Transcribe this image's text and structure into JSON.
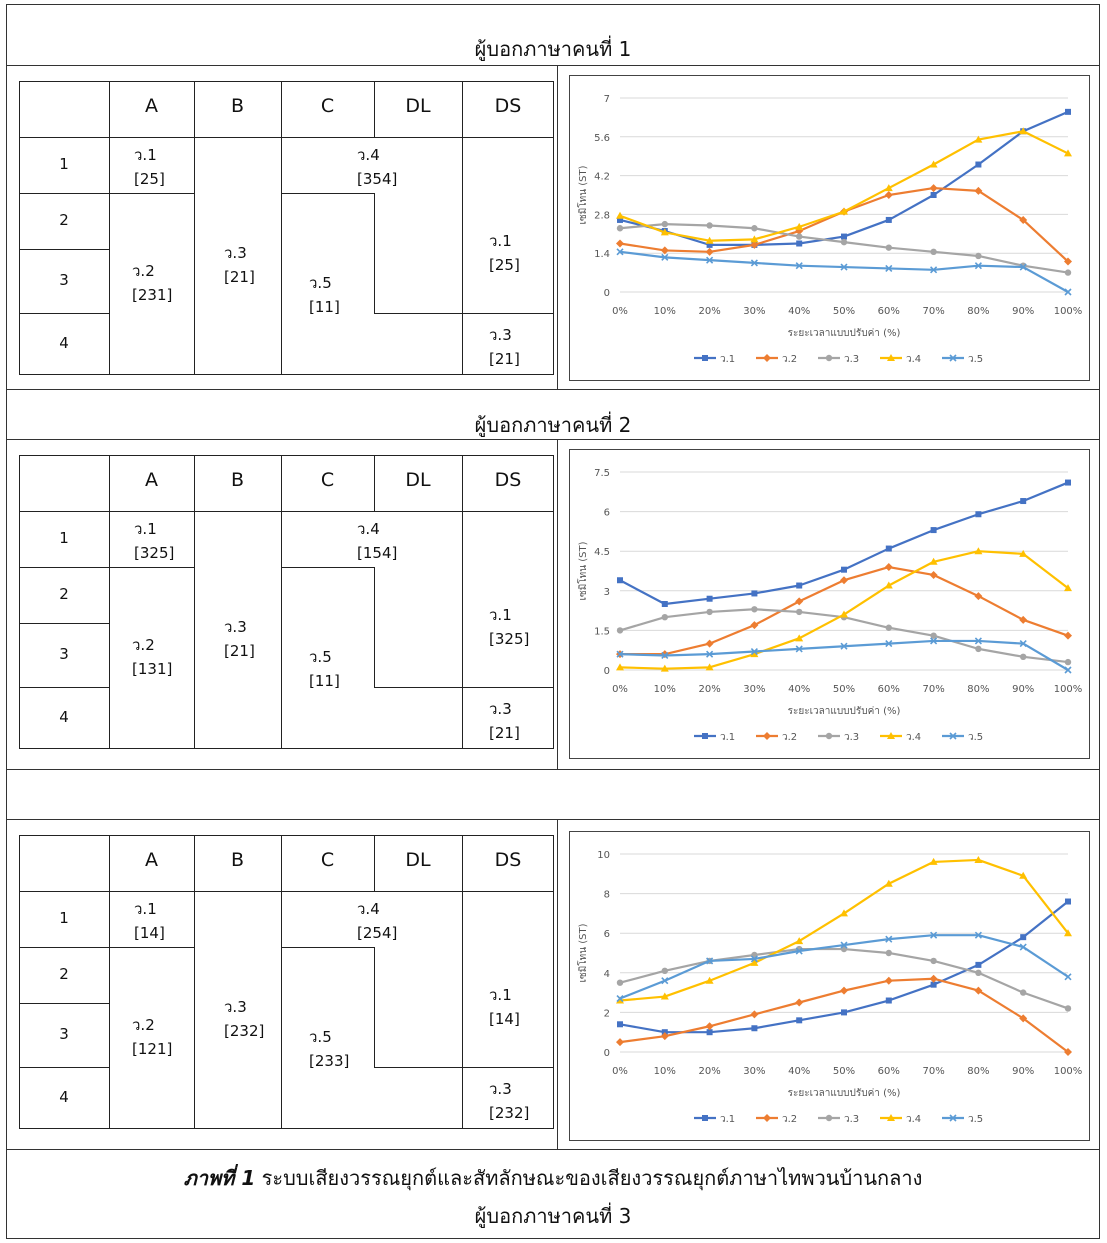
{
  "sections": [
    {
      "title": "ผู้บอกภาษาคนที่ 1",
      "table": {
        "headers": [
          "A",
          "B",
          "C",
          "DL",
          "DS"
        ],
        "rows": [
          "1",
          "2",
          "3",
          "4"
        ],
        "cells": {
          "v1": {
            "name": "ว.1",
            "val": "[25]"
          },
          "v2": {
            "name": "ว.2",
            "val": "[231]"
          },
          "v3": {
            "name": "ว.3",
            "val": "[21]"
          },
          "v4": {
            "name": "ว.4",
            "val": "[354]"
          },
          "v5": {
            "name": "ว.5",
            "val": "[11]"
          },
          "ds1": {
            "name": "ว.1",
            "val": "[25]"
          },
          "ds3": {
            "name": "ว.3",
            "val": "[21]"
          }
        }
      }
    },
    {
      "title": "ผู้บอกภาษาคนที่ 2",
      "table": {
        "headers": [
          "A",
          "B",
          "C",
          "DL",
          "DS"
        ],
        "rows": [
          "1",
          "2",
          "3",
          "4"
        ],
        "cells": {
          "v1": {
            "name": "ว.1",
            "val": "[325]"
          },
          "v2": {
            "name": "ว.2",
            "val": "[131]"
          },
          "v3": {
            "name": "ว.3",
            "val": "[21]"
          },
          "v4": {
            "name": "ว.4",
            "val": "[154]"
          },
          "v5": {
            "name": "ว.5",
            "val": "[11]"
          },
          "ds1": {
            "name": "ว.1",
            "val": "[325]"
          },
          "ds3": {
            "name": "ว.3",
            "val": "[21]"
          }
        }
      }
    },
    {
      "title": "",
      "table": {
        "headers": [
          "A",
          "B",
          "C",
          "DL",
          "DS"
        ],
        "rows": [
          "1",
          "2",
          "3",
          "4"
        ],
        "cells": {
          "v1": {
            "name": "ว.1",
            "val": "[14]"
          },
          "v2": {
            "name": "ว.2",
            "val": "[121]"
          },
          "v3": {
            "name": "ว.3",
            "val": "[232]"
          },
          "v4": {
            "name": "ว.4",
            "val": "[254]"
          },
          "v5": {
            "name": "ว.5",
            "val": "[233]"
          },
          "ds1": {
            "name": "ว.1",
            "val": "[14]"
          },
          "ds3": {
            "name": "ว.3",
            "val": "[232]"
          }
        }
      }
    }
  ],
  "caption": {
    "bold": "ภาพที่ 1",
    "text": " ระบบเสียงวรรณยุกต์และสัทลักษณะของเสียงวรรณยุกต์ภาษาไทพวนบ้านกลาง",
    "line2": "ผู้บอกภาษาคนที่ 3"
  },
  "chart_data": [
    {
      "type": "line",
      "x": [
        "0%",
        "10%",
        "20%",
        "30%",
        "40%",
        "50%",
        "60%",
        "70%",
        "80%",
        "90%",
        "100%"
      ],
      "ylabel": "เซมิโทน (ST)",
      "xlabel": "ระยะเวลาแบบปรับค่า (%)",
      "yticks": [
        "0",
        "1.4",
        "2.8",
        "4.2",
        "5.6",
        "7"
      ],
      "ylim": [
        0,
        7
      ],
      "legend": "bottom",
      "series": [
        {
          "name": "ว.1",
          "color": "#4472C4",
          "marker": "square",
          "values": [
            2.6,
            2.2,
            1.7,
            1.7,
            1.75,
            2.0,
            2.6,
            3.5,
            4.6,
            5.8,
            6.5
          ]
        },
        {
          "name": "ว.2",
          "color": "#ED7D31",
          "marker": "diamond",
          "values": [
            1.75,
            1.5,
            1.45,
            1.7,
            2.2,
            2.9,
            3.5,
            3.75,
            3.65,
            2.6,
            1.1
          ]
        },
        {
          "name": "ว.3",
          "color": "#A5A5A5",
          "marker": "circle",
          "values": [
            2.3,
            2.45,
            2.4,
            2.3,
            2.0,
            1.8,
            1.6,
            1.45,
            1.3,
            0.95,
            0.7
          ]
        },
        {
          "name": "ว.4",
          "color": "#FFC000",
          "marker": "triangle",
          "values": [
            2.75,
            2.15,
            1.85,
            1.9,
            2.35,
            2.9,
            3.75,
            4.6,
            5.5,
            5.8,
            5.0
          ]
        },
        {
          "name": "ว.5",
          "color": "#5B9BD5",
          "marker": "x",
          "values": [
            1.45,
            1.25,
            1.15,
            1.05,
            0.95,
            0.9,
            0.85,
            0.8,
            0.95,
            0.9,
            0.0
          ]
        }
      ]
    },
    {
      "type": "line",
      "x": [
        "0%",
        "10%",
        "20%",
        "30%",
        "40%",
        "50%",
        "60%",
        "70%",
        "80%",
        "90%",
        "100%"
      ],
      "ylabel": "เซมิโทน (ST)",
      "xlabel": "ระยะเวลาแบบปรับค่า (%)",
      "yticks": [
        "0",
        "1.5",
        "3",
        "4.5",
        "6",
        "7.5"
      ],
      "ylim": [
        0,
        7.5
      ],
      "legend": "bottom",
      "series": [
        {
          "name": "ว.1",
          "color": "#4472C4",
          "marker": "square",
          "values": [
            3.4,
            2.5,
            2.7,
            2.9,
            3.2,
            3.8,
            4.6,
            5.3,
            5.9,
            6.4,
            7.1
          ]
        },
        {
          "name": "ว.2",
          "color": "#ED7D31",
          "marker": "diamond",
          "values": [
            0.6,
            0.6,
            1.0,
            1.7,
            2.6,
            3.4,
            3.9,
            3.6,
            2.8,
            1.9,
            1.3
          ]
        },
        {
          "name": "ว.3",
          "color": "#A5A5A5",
          "marker": "circle",
          "values": [
            1.5,
            2.0,
            2.2,
            2.3,
            2.2,
            2.0,
            1.6,
            1.3,
            0.8,
            0.5,
            0.3
          ]
        },
        {
          "name": "ว.4",
          "color": "#FFC000",
          "marker": "triangle",
          "values": [
            0.1,
            0.05,
            0.1,
            0.6,
            1.2,
            2.1,
            3.2,
            4.1,
            4.5,
            4.4,
            3.1
          ]
        },
        {
          "name": "ว.5",
          "color": "#5B9BD5",
          "marker": "x",
          "values": [
            0.6,
            0.55,
            0.6,
            0.7,
            0.8,
            0.9,
            1.0,
            1.1,
            1.1,
            1.0,
            0.0
          ]
        }
      ]
    },
    {
      "type": "line",
      "x": [
        "0%",
        "10%",
        "20%",
        "30%",
        "40%",
        "50%",
        "60%",
        "70%",
        "80%",
        "90%",
        "100%"
      ],
      "ylabel": "เซมิโทน (ST)",
      "xlabel": "ระยะเวลาแบบปรับค่า (%)",
      "yticks": [
        "0",
        "2",
        "4",
        "6",
        "8",
        "10"
      ],
      "ylim": [
        0,
        10
      ],
      "legend": "bottom",
      "series": [
        {
          "name": "ว.1",
          "color": "#4472C4",
          "marker": "square",
          "values": [
            1.4,
            1.0,
            1.0,
            1.2,
            1.6,
            2.0,
            2.6,
            3.4,
            4.4,
            5.8,
            7.6
          ]
        },
        {
          "name": "ว.2",
          "color": "#ED7D31",
          "marker": "diamond",
          "values": [
            0.5,
            0.8,
            1.3,
            1.9,
            2.5,
            3.1,
            3.6,
            3.7,
            3.1,
            1.7,
            0.0
          ]
        },
        {
          "name": "ว.3",
          "color": "#A5A5A5",
          "marker": "circle",
          "values": [
            3.5,
            4.1,
            4.6,
            4.9,
            5.2,
            5.2,
            5.0,
            4.6,
            4.0,
            3.0,
            2.2
          ]
        },
        {
          "name": "ว.4",
          "color": "#FFC000",
          "marker": "triangle",
          "values": [
            2.6,
            2.8,
            3.6,
            4.5,
            5.6,
            7.0,
            8.5,
            9.6,
            9.7,
            8.9,
            6.0
          ]
        },
        {
          "name": "ว.5",
          "color": "#5B9BD5",
          "marker": "x",
          "values": [
            2.7,
            3.6,
            4.6,
            4.7,
            5.1,
            5.4,
            5.7,
            5.9,
            5.9,
            5.3,
            3.8
          ]
        }
      ]
    }
  ]
}
